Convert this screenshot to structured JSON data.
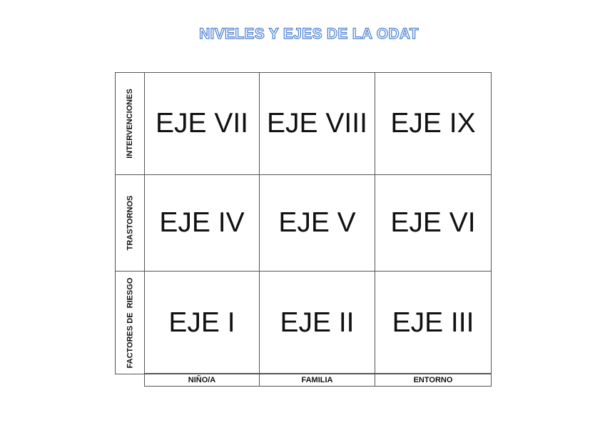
{
  "title": "NIVELES Y EJES DE LA ODAT",
  "rows": [
    {
      "label": "INTERVENCIONES",
      "cells": [
        "EJE VII",
        "EJE VIII",
        "EJE IX"
      ]
    },
    {
      "label": "TRASTORNOS",
      "cells": [
        "EJE IV",
        "EJE V",
        "EJE VI"
      ]
    },
    {
      "label": "FACTORES DE  RIESGO",
      "cells": [
        "EJE I",
        "EJE II",
        "EJE III"
      ]
    }
  ],
  "columns": [
    "NIÑO/A",
    "FAMILIA",
    "ENTORNO"
  ]
}
